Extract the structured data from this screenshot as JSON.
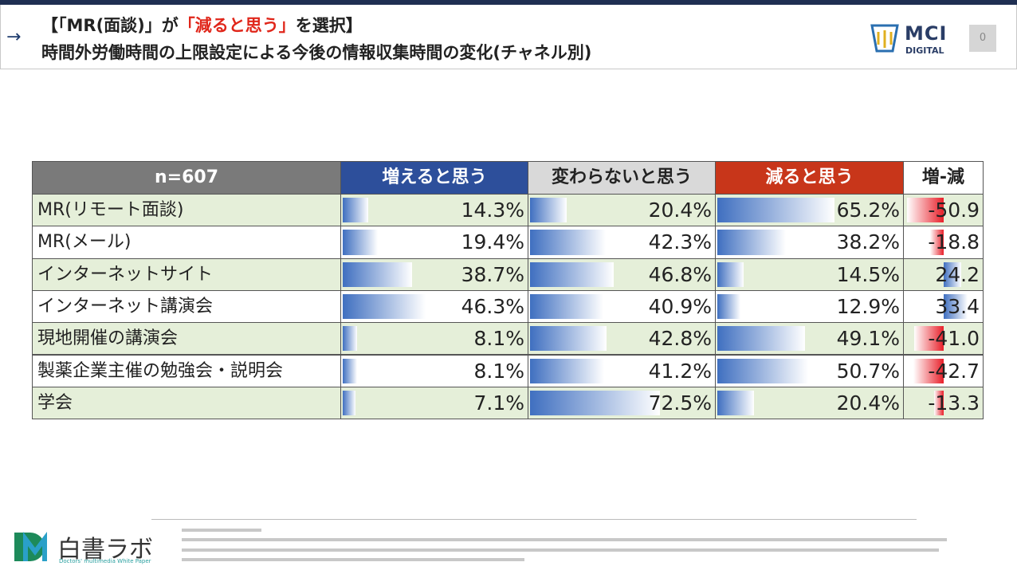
{
  "header": {
    "title_parts": [
      "【「MR(面談)」が",
      "「減ると思う」",
      "を選択】"
    ],
    "subtitle": "時間外労働時間の上限設定による今後の情報収集時間の変化(チャネル別)",
    "brand": [
      "MCI",
      "DIGITAL"
    ],
    "page": "0"
  },
  "table": {
    "columns": [
      "n=607",
      "増えると思う",
      "変わらないと思う",
      "減ると思う",
      "増-減"
    ],
    "rows": [
      {
        "label": "MR(リモート面談)",
        "values": [
          14.3,
          20.4,
          65.2,
          -50.9
        ],
        "value_labels": [
          "14.3%",
          "20.4%",
          "65.2%",
          "-50.9"
        ]
      },
      {
        "label": "MR(メール)",
        "values": [
          19.4,
          42.3,
          38.2,
          -18.8
        ],
        "value_labels": [
          "19.4%",
          "42.3%",
          "38.2%",
          "-18.8"
        ]
      },
      {
        "label": "インターネットサイト",
        "values": [
          38.7,
          46.8,
          14.5,
          24.2
        ],
        "value_labels": [
          "38.7%",
          "46.8%",
          "14.5%",
          "24.2"
        ]
      },
      {
        "label": "インターネット講演会",
        "values": [
          46.3,
          40.9,
          12.9,
          33.4
        ],
        "value_labels": [
          "46.3%",
          "40.9%",
          "12.9%",
          "33.4"
        ]
      },
      {
        "label": "現地開催の講演会",
        "values": [
          8.1,
          42.8,
          49.1,
          -41.0
        ],
        "value_labels": [
          "8.1%",
          "42.8%",
          "49.1%",
          "-41.0"
        ]
      },
      {
        "label": "製薬企業主催の勉強会・説明会",
        "values": [
          8.1,
          41.2,
          50.7,
          -42.7
        ],
        "value_labels": [
          "8.1%",
          "41.2%",
          "50.7%",
          "-42.7"
        ]
      },
      {
        "label": "学会",
        "values": [
          7.1,
          72.5,
          20.4,
          -13.3
        ],
        "value_labels": [
          "7.1%",
          "72.5%",
          "20.4%",
          "-13.3"
        ]
      }
    ]
  },
  "footer": {
    "logo": "白書ラボ",
    "logo_sub": "Doctors' multimedia White Paper"
  }
}
